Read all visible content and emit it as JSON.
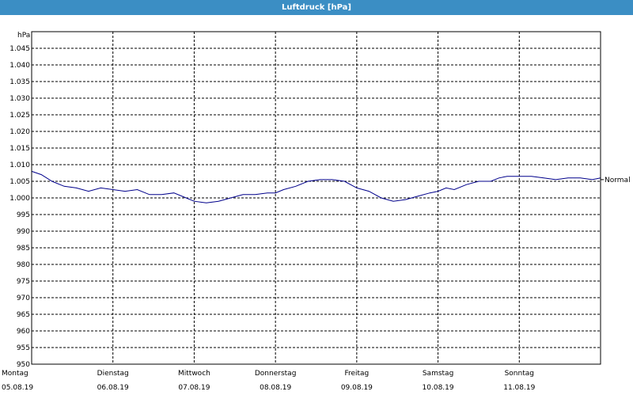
{
  "window": {
    "title": "Luftdruck [hPa]"
  },
  "chart_data": {
    "type": "line",
    "ylabel": "hPa",
    "ylim": [
      950,
      1050
    ],
    "y_ticks": [
      {
        "value": 950,
        "label": "950"
      },
      {
        "value": 955,
        "label": "955"
      },
      {
        "value": 960,
        "label": "960"
      },
      {
        "value": 965,
        "label": "965"
      },
      {
        "value": 970,
        "label": "970"
      },
      {
        "value": 975,
        "label": "975"
      },
      {
        "value": 980,
        "label": "980"
      },
      {
        "value": 985,
        "label": "985"
      },
      {
        "value": 990,
        "label": "990"
      },
      {
        "value": 995,
        "label": "995"
      },
      {
        "value": 1000,
        "label": "1.000"
      },
      {
        "value": 1005,
        "label": "1.005"
      },
      {
        "value": 1010,
        "label": "1.010"
      },
      {
        "value": 1015,
        "label": "1.015"
      },
      {
        "value": 1020,
        "label": "1.020"
      },
      {
        "value": 1025,
        "label": "1.025"
      },
      {
        "value": 1030,
        "label": "1.030"
      },
      {
        "value": 1035,
        "label": "1.035"
      },
      {
        "value": 1040,
        "label": "1.040"
      },
      {
        "value": 1045,
        "label": "1.045"
      }
    ],
    "days": [
      {
        "day": "Montag",
        "date": "05.08.19"
      },
      {
        "day": "Dienstag",
        "date": "06.08.19"
      },
      {
        "day": "Mittwoch",
        "date": "07.08.19"
      },
      {
        "day": "Donnerstag",
        "date": "08.08.19"
      },
      {
        "day": "Freitag",
        "date": "09.08.19"
      },
      {
        "day": "Samstag",
        "date": "10.08.19"
      },
      {
        "day": "Sonntag",
        "date": "11.08.19"
      }
    ],
    "grid": true,
    "series": [
      {
        "color": "#00008b",
        "x_days": [
          0,
          0.12,
          0.25,
          0.4,
          0.55,
          0.7,
          0.85,
          1.0,
          1.15,
          1.3,
          1.45,
          1.6,
          1.75,
          1.9,
          2.0,
          2.15,
          2.3,
          2.45,
          2.6,
          2.75,
          2.9,
          3.0,
          3.1,
          3.25,
          3.4,
          3.55,
          3.7,
          3.85,
          4.0,
          4.15,
          4.3,
          4.45,
          4.6,
          4.75,
          4.9,
          5.0,
          5.1,
          5.2,
          5.35,
          5.5,
          5.65,
          5.75,
          5.85,
          6.0,
          6.15,
          6.3,
          6.45,
          6.6,
          6.75,
          6.9,
          7.0
        ],
        "y": [
          1008,
          1007,
          1005,
          1003.5,
          1003,
          1002,
          1003,
          1002.5,
          1002,
          1002.5,
          1001,
          1001,
          1001.5,
          1000,
          999,
          998.5,
          999,
          1000,
          1001,
          1001,
          1001.5,
          1001.5,
          1002.5,
          1003.5,
          1005,
          1005.5,
          1005.5,
          1005,
          1003,
          1002,
          1000,
          999,
          999.5,
          1000.5,
          1001.5,
          1002,
          1003,
          1002.5,
          1004,
          1005,
          1005,
          1006,
          1006.5,
          1006.5,
          1006.5,
          1006,
          1005.5,
          1006,
          1006,
          1005.5,
          1006
        ]
      }
    ],
    "reference": {
      "label": "Normal",
      "value": 1005.5
    }
  }
}
